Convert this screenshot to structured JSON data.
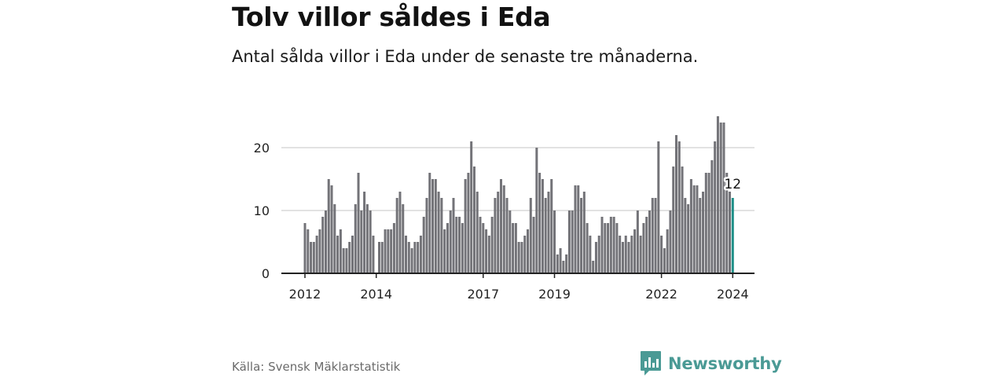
{
  "header": {
    "title": "Tolv villor såldes i Eda",
    "subtitle": "Antal sålda villor i Eda under de senaste tre månaderna."
  },
  "footer": {
    "source": "Källa: Svensk Mäklarstatistik",
    "brand": "Newsworthy",
    "brand_icon": "bar-chart-logo-icon"
  },
  "colors": {
    "bar": "#737378",
    "highlight": "#1f8f88",
    "grid": "#d8d8d8",
    "axis": "#222222",
    "brand": "#4a9a95"
  },
  "chart_data": {
    "type": "bar",
    "title": "Tolv villor såldes i Eda",
    "subtitle": "Antal sålda villor i Eda under de senaste tre månaderna.",
    "xlabel": "",
    "ylabel": "",
    "ylim": [
      0,
      26
    ],
    "yticks": [
      0,
      10,
      20
    ],
    "xticks": [
      {
        "label": "2012",
        "index": 0
      },
      {
        "label": "2014",
        "index": 24
      },
      {
        "label": "2017",
        "index": 60
      },
      {
        "label": "2019",
        "index": 84
      },
      {
        "label": "2022",
        "index": 120
      },
      {
        "label": "2024",
        "index": 144
      }
    ],
    "grid": true,
    "highlight_index": 144,
    "highlight_label": "12",
    "values": [
      8,
      7,
      5,
      5,
      6,
      7,
      9,
      10,
      15,
      14,
      11,
      6,
      7,
      4,
      4,
      5,
      6,
      11,
      16,
      10,
      13,
      11,
      10,
      6,
      0,
      5,
      5,
      7,
      7,
      7,
      8,
      12,
      13,
      11,
      6,
      5,
      4,
      5,
      5,
      6,
      9,
      12,
      16,
      15,
      15,
      13,
      12,
      7,
      8,
      10,
      12,
      9,
      9,
      8,
      15,
      16,
      21,
      17,
      13,
      9,
      8,
      7,
      6,
      9,
      12,
      13,
      15,
      14,
      12,
      10,
      8,
      8,
      5,
      5,
      6,
      7,
      12,
      9,
      20,
      16,
      15,
      12,
      13,
      15,
      10,
      3,
      4,
      2,
      3,
      10,
      10,
      14,
      14,
      12,
      13,
      8,
      6,
      2,
      5,
      6,
      9,
      8,
      8,
      9,
      9,
      8,
      6,
      5,
      6,
      5,
      6,
      7,
      10,
      6,
      8,
      9,
      10,
      12,
      12,
      21,
      6,
      4,
      7,
      10,
      17,
      22,
      21,
      17,
      12,
      11,
      15,
      14,
      14,
      12,
      13,
      16,
      16,
      18,
      21,
      25,
      24,
      24,
      16,
      13,
      12
    ]
  }
}
